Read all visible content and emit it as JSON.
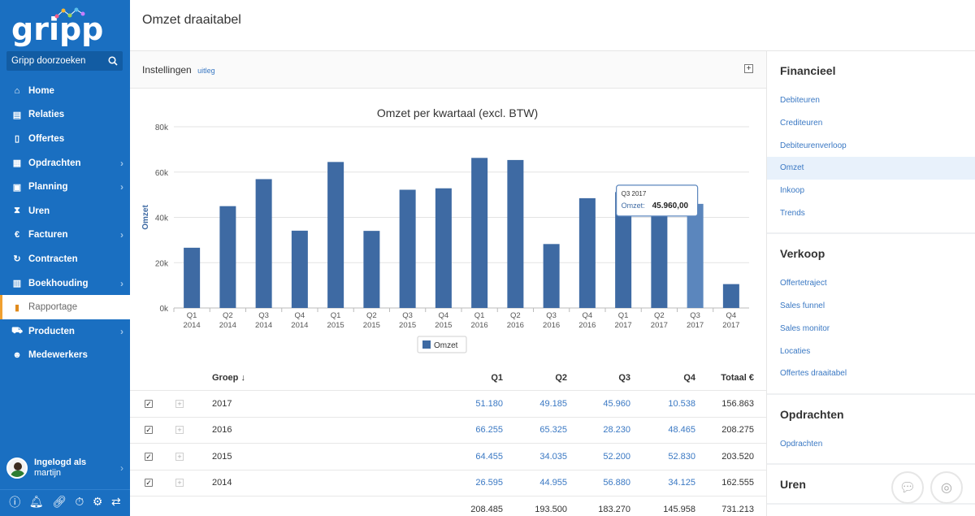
{
  "app": {
    "logo": "gripp"
  },
  "search": {
    "placeholder": "Gripp doorzoeken"
  },
  "sidebar": {
    "items": [
      {
        "label": "Home",
        "icon": "home-icon",
        "chev": false
      },
      {
        "label": "Relaties",
        "icon": "address-book-icon",
        "chev": false
      },
      {
        "label": "Offertes",
        "icon": "document-icon",
        "chev": false
      },
      {
        "label": "Opdrachten",
        "icon": "clipboard-icon",
        "chev": true
      },
      {
        "label": "Planning",
        "icon": "calendar-icon",
        "chev": true
      },
      {
        "label": "Uren",
        "icon": "hourglass-icon",
        "chev": false
      },
      {
        "label": "Facturen",
        "icon": "euro-icon",
        "chev": true
      },
      {
        "label": "Contracten",
        "icon": "refresh-icon",
        "chev": false
      },
      {
        "label": "Boekhouding",
        "icon": "book-icon",
        "chev": true
      },
      {
        "label": "Rapportage",
        "icon": "bar-chart-icon",
        "chev": false,
        "active": true
      },
      {
        "label": "Producten",
        "icon": "cart-icon",
        "chev": true
      },
      {
        "label": "Medewerkers",
        "icon": "users-icon",
        "chev": false
      }
    ]
  },
  "user": {
    "line1": "Ingelogd als",
    "line2": "martijn"
  },
  "page": {
    "title": "Omzet draaitabel"
  },
  "settings": {
    "label": "Instellingen",
    "help_link": "uitleg"
  },
  "chart_data": {
    "type": "bar",
    "title": "Omzet per kwartaal (excl. BTW)",
    "ylabel": "Omzet",
    "ylim": [
      0,
      80000
    ],
    "yticks": [
      "0k",
      "20k",
      "40k",
      "60k",
      "80k"
    ],
    "categories": [
      [
        "Q1",
        "2014"
      ],
      [
        "Q2",
        "2014"
      ],
      [
        "Q3",
        "2014"
      ],
      [
        "Q4",
        "2014"
      ],
      [
        "Q1",
        "2015"
      ],
      [
        "Q2",
        "2015"
      ],
      [
        "Q3",
        "2015"
      ],
      [
        "Q4",
        "2015"
      ],
      [
        "Q1",
        "2016"
      ],
      [
        "Q2",
        "2016"
      ],
      [
        "Q3",
        "2016"
      ],
      [
        "Q4",
        "2016"
      ],
      [
        "Q1",
        "2017"
      ],
      [
        "Q2",
        "2017"
      ],
      [
        "Q3",
        "2017"
      ],
      [
        "Q4",
        "2017"
      ]
    ],
    "series": [
      {
        "name": "Omzet",
        "values": [
          26595,
          44955,
          56880,
          34125,
          64455,
          34035,
          52200,
          52830,
          66255,
          65325,
          28230,
          48465,
          51180,
          49185,
          45960,
          10538
        ]
      }
    ],
    "legend": "bottom-center",
    "grid": true,
    "highlight_index": 14,
    "tooltip": {
      "title": "Q3 2017",
      "label": "Omzet:",
      "value": "45.960,00"
    },
    "colors": {
      "bar": "#3e6aa3",
      "bar_hover": "#5b86bd"
    }
  },
  "table": {
    "headers": {
      "group": "Groep ↓",
      "q1": "Q1",
      "q2": "Q2",
      "q3": "Q3",
      "q4": "Q4",
      "total": "Totaal €"
    },
    "rows": [
      {
        "group": "2017",
        "q1": "51.180",
        "q2": "49.185",
        "q3": "45.960",
        "q4": "10.538",
        "total": "156.863"
      },
      {
        "group": "2016",
        "q1": "66.255",
        "q2": "65.325",
        "q3": "28.230",
        "q4": "48.465",
        "total": "208.275"
      },
      {
        "group": "2015",
        "q1": "64.455",
        "q2": "34.035",
        "q3": "52.200",
        "q4": "52.830",
        "total": "203.520"
      },
      {
        "group": "2014",
        "q1": "26.595",
        "q2": "44.955",
        "q3": "56.880",
        "q4": "34.125",
        "total": "162.555"
      }
    ],
    "totals": {
      "q1": "208.485",
      "q2": "193.500",
      "q3": "183.270",
      "q4": "145.958",
      "total": "731.213"
    }
  },
  "right_panel": {
    "sections": [
      {
        "title": "Financieel",
        "items": [
          "Debiteuren",
          "Crediteuren",
          "Debiteurenverloop",
          "Omzet",
          "Inkoop",
          "Trends"
        ],
        "active": "Omzet"
      },
      {
        "title": "Verkoop",
        "items": [
          "Offertetraject",
          "Sales funnel",
          "Sales monitor",
          "Locaties",
          "Offertes draaitabel"
        ]
      },
      {
        "title": "Opdrachten",
        "items": [
          "Opdrachten"
        ]
      },
      {
        "title": "Uren",
        "items": []
      }
    ]
  },
  "colors": {
    "sidebar": "#1a6fc1",
    "accent": "#f0a030",
    "link": "#3a78c3"
  }
}
